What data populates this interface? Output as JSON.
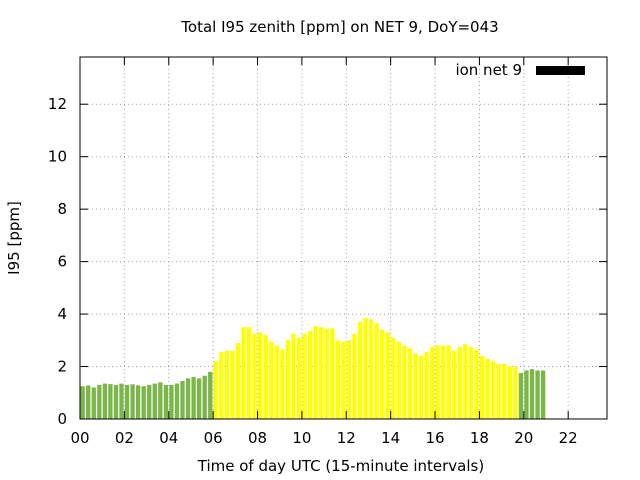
{
  "chart_data": {
    "type": "bar",
    "title": "Total I95 zenith [ppm] on NET 9, DoY=043",
    "xlabel": "Time of day UTC (15-minute intervals)",
    "ylabel": "I95 [ppm]",
    "ylim": [
      0,
      13.8
    ],
    "xlim": [
      0,
      23.75
    ],
    "y_ticks": [
      0,
      2,
      4,
      6,
      8,
      10,
      12
    ],
    "x_ticks": [
      0,
      2,
      4,
      6,
      8,
      10,
      12,
      14,
      16,
      18,
      20,
      22
    ],
    "x_tick_labels": [
      "00",
      "02",
      "04",
      "06",
      "08",
      "10",
      "12",
      "14",
      "16",
      "18",
      "20",
      "22"
    ],
    "grid": true,
    "legend": {
      "label": "ion net 9",
      "placement": "top-right",
      "color": "#000000"
    },
    "colors": {
      "quiet": "#7ab648",
      "active": "#ffff00"
    },
    "interval_hours": 0.25,
    "x_start": 0,
    "values": [
      1.25,
      1.28,
      1.2,
      1.3,
      1.35,
      1.33,
      1.3,
      1.35,
      1.3,
      1.32,
      1.28,
      1.25,
      1.3,
      1.35,
      1.4,
      1.3,
      1.3,
      1.35,
      1.45,
      1.55,
      1.6,
      1.55,
      1.65,
      1.8,
      2.2,
      2.55,
      2.6,
      2.6,
      2.9,
      3.5,
      3.5,
      3.25,
      3.3,
      3.2,
      2.95,
      2.8,
      2.65,
      3.0,
      3.25,
      3.1,
      3.25,
      3.35,
      3.55,
      3.5,
      3.45,
      3.45,
      3.0,
      2.95,
      3.0,
      3.25,
      3.7,
      3.85,
      3.8,
      3.65,
      3.4,
      3.3,
      3.1,
      2.95,
      2.8,
      2.7,
      2.5,
      2.4,
      2.55,
      2.75,
      2.8,
      2.8,
      2.8,
      2.6,
      2.75,
      2.85,
      2.75,
      2.65,
      2.4,
      2.3,
      2.2,
      2.1,
      2.1,
      2.0,
      2.0,
      1.75,
      1.85,
      1.9,
      1.85,
      1.85
    ],
    "categories": [
      "quiet",
      "quiet",
      "quiet",
      "quiet",
      "quiet",
      "quiet",
      "quiet",
      "quiet",
      "quiet",
      "quiet",
      "quiet",
      "quiet",
      "quiet",
      "quiet",
      "quiet",
      "quiet",
      "quiet",
      "quiet",
      "quiet",
      "quiet",
      "quiet",
      "quiet",
      "quiet",
      "quiet",
      "active",
      "active",
      "active",
      "active",
      "active",
      "active",
      "active",
      "active",
      "active",
      "active",
      "active",
      "active",
      "active",
      "active",
      "active",
      "active",
      "active",
      "active",
      "active",
      "active",
      "active",
      "active",
      "active",
      "active",
      "active",
      "active",
      "active",
      "active",
      "active",
      "active",
      "active",
      "active",
      "active",
      "active",
      "active",
      "active",
      "active",
      "active",
      "active",
      "active",
      "active",
      "active",
      "active",
      "active",
      "active",
      "active",
      "active",
      "active",
      "active",
      "active",
      "active",
      "active",
      "active",
      "active",
      "active",
      "quiet",
      "quiet",
      "quiet",
      "quiet",
      "quiet"
    ]
  }
}
